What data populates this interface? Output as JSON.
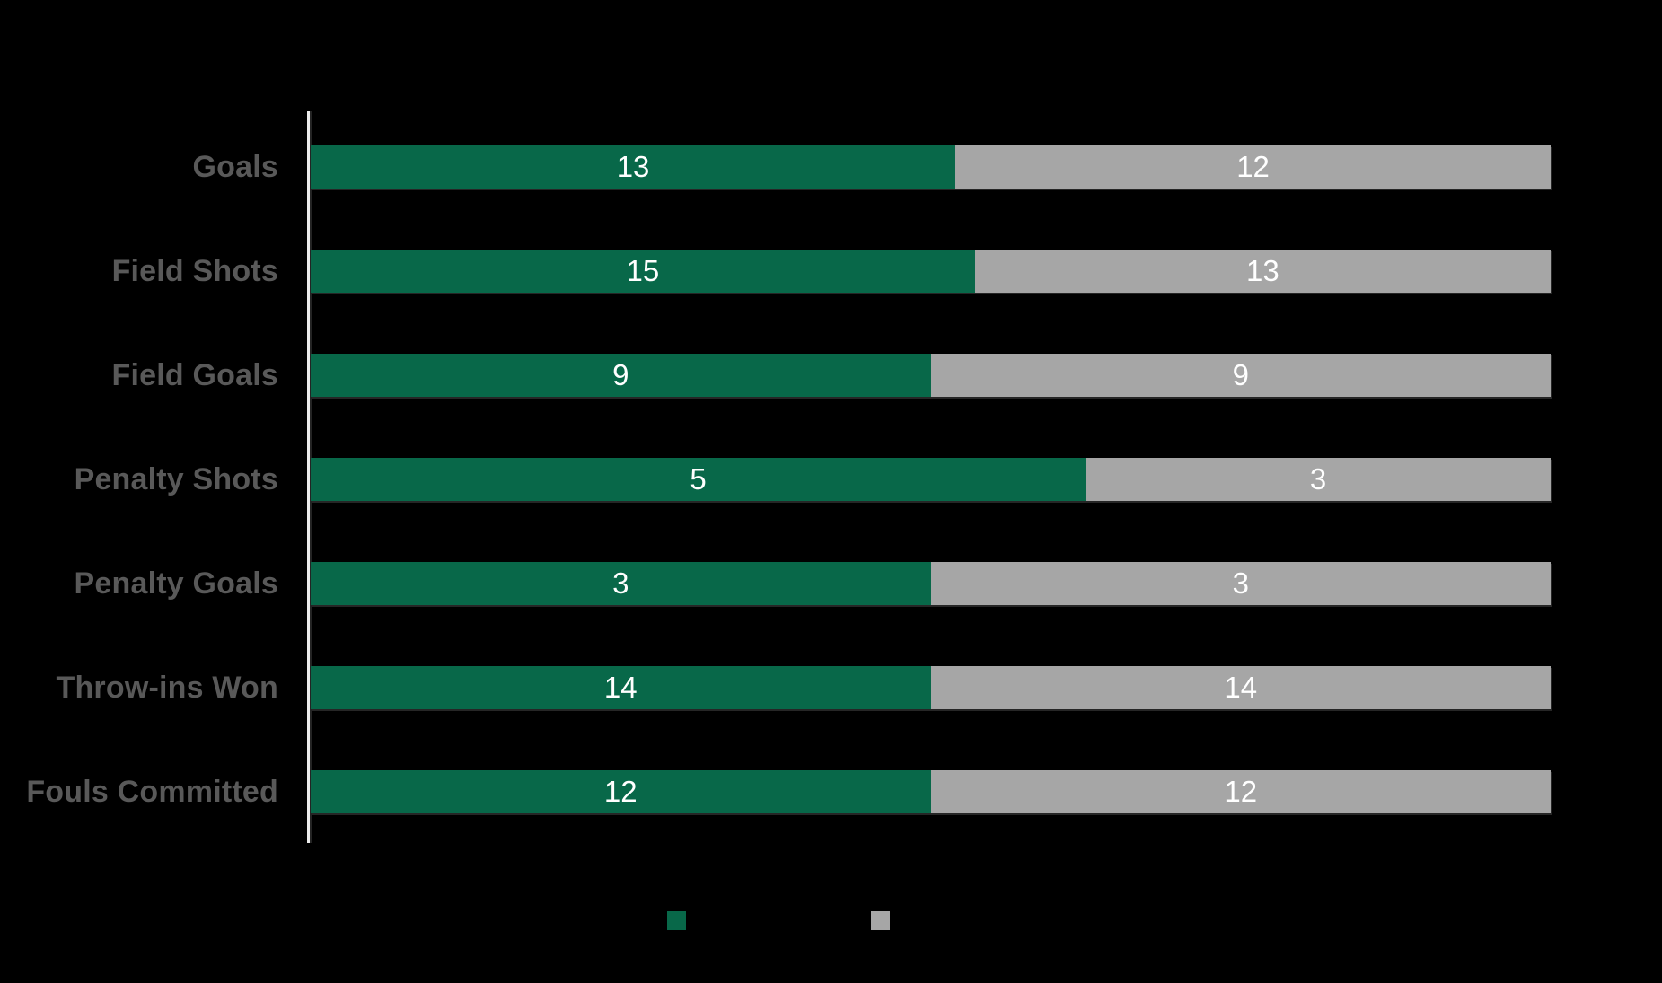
{
  "background_color": "#000000",
  "chart_data": {
    "type": "bar",
    "orientation": "horizontal",
    "stacked": true,
    "stacked_mode": "proportional-100-percent-of-row-total",
    "title": "",
    "xlabel": "",
    "ylabel": "",
    "grid": false,
    "legend_position": "bottom",
    "axis_line_color": "#ECECEC",
    "category_label_color": "#595959",
    "value_label_color": "#FFFFFF",
    "value_labels": "inside-center",
    "categories": [
      "Goals",
      "Field Shots",
      "Field Goals",
      "Penalty Shots",
      "Penalty Goals",
      "Throw-ins Won",
      "Fouls Committed"
    ],
    "series": [
      {
        "name": "",
        "color": "#086849",
        "values": [
          13,
          15,
          9,
          5,
          3,
          14,
          12
        ]
      },
      {
        "name": "",
        "color": "#A6A6A6",
        "values": [
          12,
          13,
          9,
          3,
          3,
          14,
          12
        ]
      }
    ]
  },
  "legend": {
    "items": [
      {
        "label": "",
        "color": "#086849"
      },
      {
        "label": "",
        "color": "#A6A6A6"
      }
    ]
  }
}
